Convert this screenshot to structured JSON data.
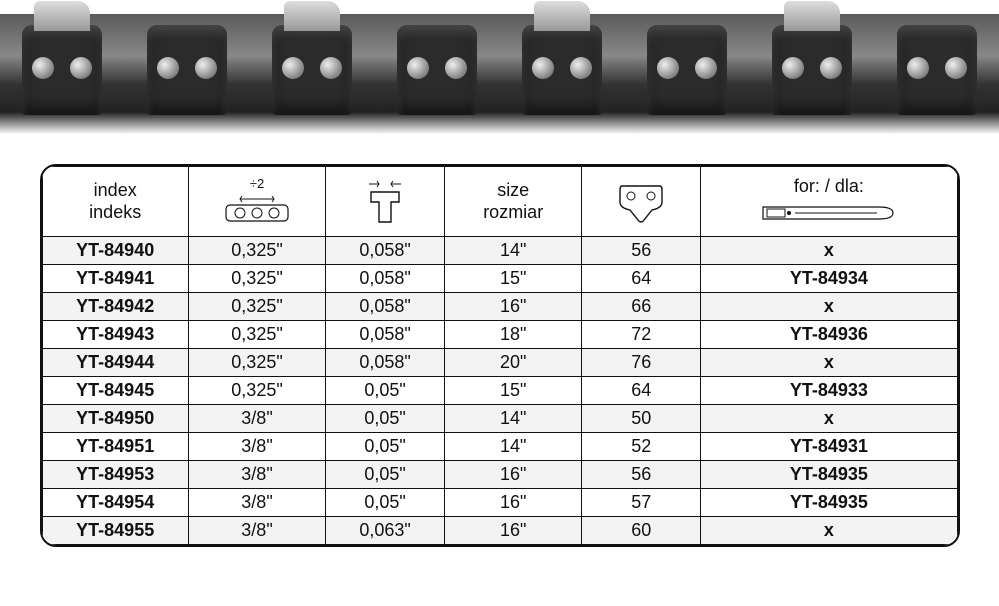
{
  "table": {
    "headers": {
      "index": "index\nindeks",
      "pitch_icon_label": "÷2",
      "size": "size\nrozmiar",
      "for": "for: / dla:"
    },
    "col_widths_pct": [
      16,
      15,
      13,
      15,
      13,
      28
    ],
    "header_bg": "#ffffff",
    "row_odd_bg": "#f3f3f3",
    "row_even_bg": "#ffffff",
    "border_color": "#111111",
    "text_color": "#111111",
    "font_size_pt": 14,
    "rows": [
      [
        "YT-84940",
        "0,325\"",
        "0,058\"",
        "14\"",
        "56",
        "x"
      ],
      [
        "YT-84941",
        "0,325\"",
        "0,058\"",
        "15\"",
        "64",
        "YT-84934"
      ],
      [
        "YT-84942",
        "0,325\"",
        "0,058\"",
        "16\"",
        "66",
        "x"
      ],
      [
        "YT-84943",
        "0,325\"",
        "0,058\"",
        "18\"",
        "72",
        "YT-84936"
      ],
      [
        "YT-84944",
        "0,325\"",
        "0,058\"",
        "20\"",
        "76",
        "x"
      ],
      [
        "YT-84945",
        "0,325\"",
        "0,05\"",
        "15\"",
        "64",
        "YT-84933"
      ],
      [
        "YT-84950",
        "3/8\"",
        "0,05\"",
        "14\"",
        "50",
        "x"
      ],
      [
        "YT-84951",
        "3/8\"",
        "0,05\"",
        "14\"",
        "52",
        "YT-84931"
      ],
      [
        "YT-84953",
        "3/8\"",
        "0,05\"",
        "16\"",
        "56",
        "YT-84935"
      ],
      [
        "YT-84954",
        "3/8\"",
        "0,05\"",
        "16\"",
        "57",
        "YT-84935"
      ],
      [
        "YT-84955",
        "3/8\"",
        "0,063\"",
        "16\"",
        "60",
        "x"
      ]
    ]
  },
  "chain_image": {
    "segment_count": 6,
    "steel_color": "#a9acae",
    "dark_color": "#2b2b2b",
    "rivet_color": "#cfcfcf"
  }
}
